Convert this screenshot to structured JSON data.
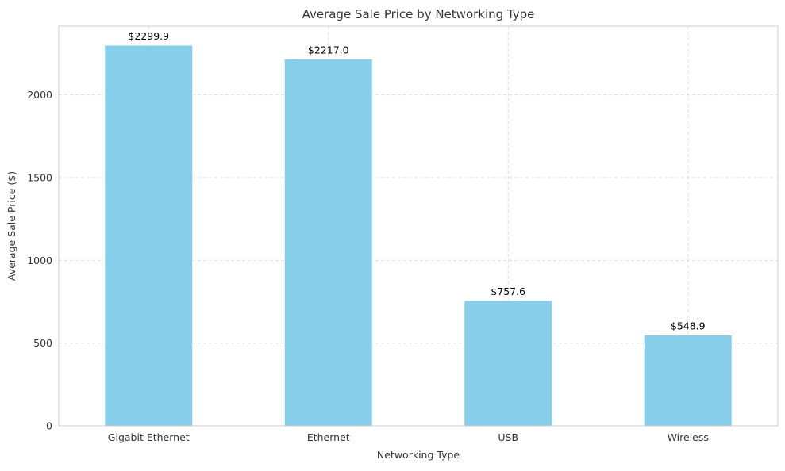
{
  "chart_data": {
    "type": "bar",
    "title": "Average Sale Price by Networking Type",
    "xlabel": "Networking Type",
    "ylabel": "Average Sale Price ($)",
    "categories": [
      "Gigabit Ethernet",
      "Ethernet",
      "USB",
      "Wireless"
    ],
    "values": [
      2299.9,
      2217.0,
      757.6,
      548.9
    ],
    "data_labels": [
      "$2299.9",
      "$2217.0",
      "$757.6",
      "$548.9"
    ],
    "yticks": [
      0,
      500,
      1000,
      1500,
      2000
    ],
    "ytick_labels": [
      "0",
      "500",
      "1000",
      "1500",
      "2000"
    ],
    "ylim": [
      0,
      2414.9
    ],
    "grid": "y-dashed",
    "legend": "none",
    "bar_color": "#87ceeb"
  }
}
